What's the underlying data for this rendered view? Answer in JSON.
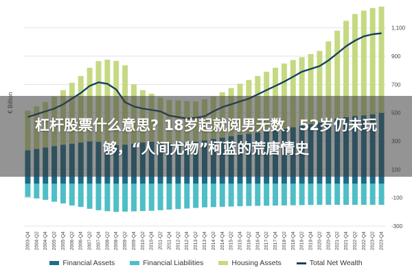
{
  "headline": "杠杆股票什么意思? 18岁起就阅男无数，52岁仍未玩够，“人间尤物”柯蓝的荒唐情史",
  "chart_data": {
    "type": "bar",
    "ylabel": "€ Billion",
    "ylim": [
      -300,
      1200
    ],
    "yticks": [
      -300,
      -100,
      100,
      300,
      500,
      700,
      900,
      1100
    ],
    "ytick_labels": [
      "-300",
      "-100",
      "100",
      "300",
      "500",
      "700",
      "900",
      "1,100"
    ],
    "grid": true,
    "legend_position": "bottom",
    "x": [
      "2003-Q4",
      "2004-Q2",
      "2004-Q4",
      "2005-Q2",
      "2005-Q4",
      "2006-Q2",
      "2006-Q4",
      "2007-Q2",
      "2007-Q4",
      "2008-Q2",
      "2008-Q4",
      "2009-Q2",
      "2009-Q4",
      "2010-Q2",
      "2010-Q4",
      "2011-Q2",
      "2011-Q4",
      "2012-Q2",
      "2012-Q4",
      "2013-Q2",
      "2013-Q4",
      "2014-Q2",
      "2014-Q4",
      "2015-Q2",
      "2015-Q4",
      "2016-Q2",
      "2016-Q4",
      "2017-Q2",
      "2017-Q4",
      "2018-Q2",
      "2018-Q4",
      "2019-Q2",
      "2019-Q4",
      "2020-Q2",
      "2020-Q4",
      "2021-Q2",
      "2021-Q4",
      "2022-Q2",
      "2022-Q4",
      "2023-Q2",
      "2023-Q4"
    ],
    "series": [
      {
        "name": "Financial Assets",
        "kind": "bar",
        "color": "#1e6b87",
        "values": [
          235,
          245,
          255,
          265,
          275,
          282,
          290,
          298,
          295,
          285,
          272,
          275,
          282,
          290,
          295,
          288,
          285,
          288,
          292,
          295,
          305,
          315,
          325,
          335,
          345,
          352,
          360,
          370,
          378,
          388,
          398,
          408,
          420,
          432,
          445,
          460,
          470,
          478,
          482,
          490,
          500
        ]
      },
      {
        "name": "Financial Liabilities",
        "kind": "bar",
        "color": "#4fbec6",
        "values": [
          -95,
          -105,
          -115,
          -128,
          -140,
          -155,
          -165,
          -178,
          -188,
          -195,
          -200,
          -198,
          -196,
          -194,
          -192,
          -188,
          -184,
          -180,
          -176,
          -172,
          -168,
          -166,
          -164,
          -162,
          -160,
          -158,
          -157,
          -156,
          -155,
          -154,
          -153,
          -152,
          -151,
          -150,
          -150,
          -150,
          -150,
          -150,
          -150,
          -150,
          -150
        ]
      },
      {
        "name": "Housing Assets",
        "kind": "bar",
        "color": "#c5d982",
        "values": [
          280,
          300,
          320,
          350,
          385,
          430,
          470,
          520,
          570,
          590,
          595,
          560,
          420,
          370,
          340,
          320,
          305,
          300,
          290,
          285,
          290,
          300,
          320,
          340,
          360,
          380,
          400,
          420,
          440,
          460,
          475,
          485,
          495,
          505,
          560,
          620,
          680,
          720,
          740,
          750,
          750
        ]
      },
      {
        "name": "Total Net Wealth",
        "kind": "line",
        "color": "#15405e",
        "values": [
          470,
          490,
          510,
          530,
          560,
          600,
          640,
          690,
          715,
          705,
          665,
          575,
          545,
          530,
          520,
          510,
          480,
          470,
          460,
          465,
          475,
          510,
          540,
          560,
          580,
          600,
          630,
          660,
          690,
          720,
          755,
          790,
          810,
          830,
          870,
          920,
          970,
          1010,
          1040,
          1055,
          1062
        ]
      }
    ]
  }
}
